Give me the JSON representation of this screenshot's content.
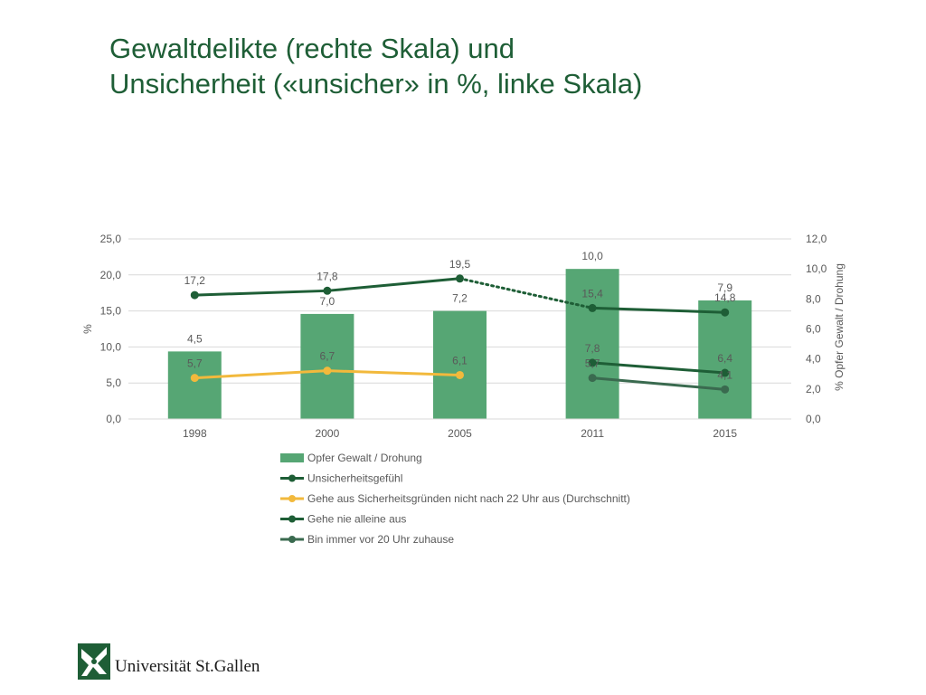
{
  "title": {
    "line1": "Gewaltdelikte (rechte Skala) und",
    "line2": "Unsicherheit («unsicher» in %, linke Skala)"
  },
  "chart_data": {
    "type": "bar",
    "categories": [
      "1998",
      "2000",
      "2005",
      "2011",
      "2015"
    ],
    "y_left": {
      "label": "%",
      "range": [
        0,
        25
      ],
      "ticks": [
        "0,0",
        "5,0",
        "10,0",
        "15,0",
        "20,0",
        "25,0"
      ],
      "tick_values": [
        0,
        5,
        10,
        15,
        20,
        25
      ]
    },
    "y_right": {
      "label": "% Opfer Gewalt / Drohung",
      "range": [
        0,
        12
      ],
      "ticks": [
        "0,0",
        "2,0",
        "4,0",
        "6,0",
        "8,0",
        "10,0",
        "12,0"
      ],
      "tick_values": [
        0,
        2,
        4,
        6,
        8,
        10,
        12
      ]
    },
    "grid": true,
    "legend_position": "bottom",
    "series": [
      {
        "name": "Opfer Gewalt / Drohung",
        "kind": "bar",
        "axis": "right",
        "color": "#56a674",
        "values": [
          4.5,
          7.0,
          7.2,
          10.0,
          7.9
        ],
        "labels": [
          "4,5",
          "7,0",
          "7,2",
          "10,0",
          "7,9"
        ]
      },
      {
        "name": "Unsicherheitsgefühl",
        "kind": "line",
        "axis": "left",
        "color": "#1e5e36",
        "values": [
          17.2,
          17.8,
          19.5,
          15.4,
          14.8
        ],
        "labels": [
          "17,2",
          "17,8",
          "19,5",
          "15,4",
          "14,8"
        ],
        "note": "2005–2011 segment dotted"
      },
      {
        "name": "Gehe aus Sicherheitsgründen nicht nach 22 Uhr aus (Durchschnitt)",
        "kind": "line",
        "axis": "left",
        "color": "#f2b93c",
        "values": [
          5.7,
          6.7,
          6.1,
          null,
          null
        ],
        "labels": [
          "5,7",
          "6,7",
          "6,1",
          "",
          ""
        ]
      },
      {
        "name": "Gehe nie alleine aus",
        "kind": "line",
        "axis": "left",
        "color": "#1e5e36",
        "values": [
          null,
          null,
          null,
          7.8,
          6.4
        ],
        "labels": [
          "",
          "",
          "",
          "7,8",
          "6,4"
        ]
      },
      {
        "name": "Bin immer vor 20 Uhr zuhause",
        "kind": "line",
        "axis": "left",
        "color": "#3a6a4f",
        "values": [
          null,
          null,
          null,
          5.7,
          4.1
        ],
        "labels": [
          "",
          "",
          "",
          "5,7",
          "4,1"
        ]
      }
    ]
  },
  "logo": {
    "text": "Universität St.Gallen",
    "color": "#1e5e36"
  }
}
